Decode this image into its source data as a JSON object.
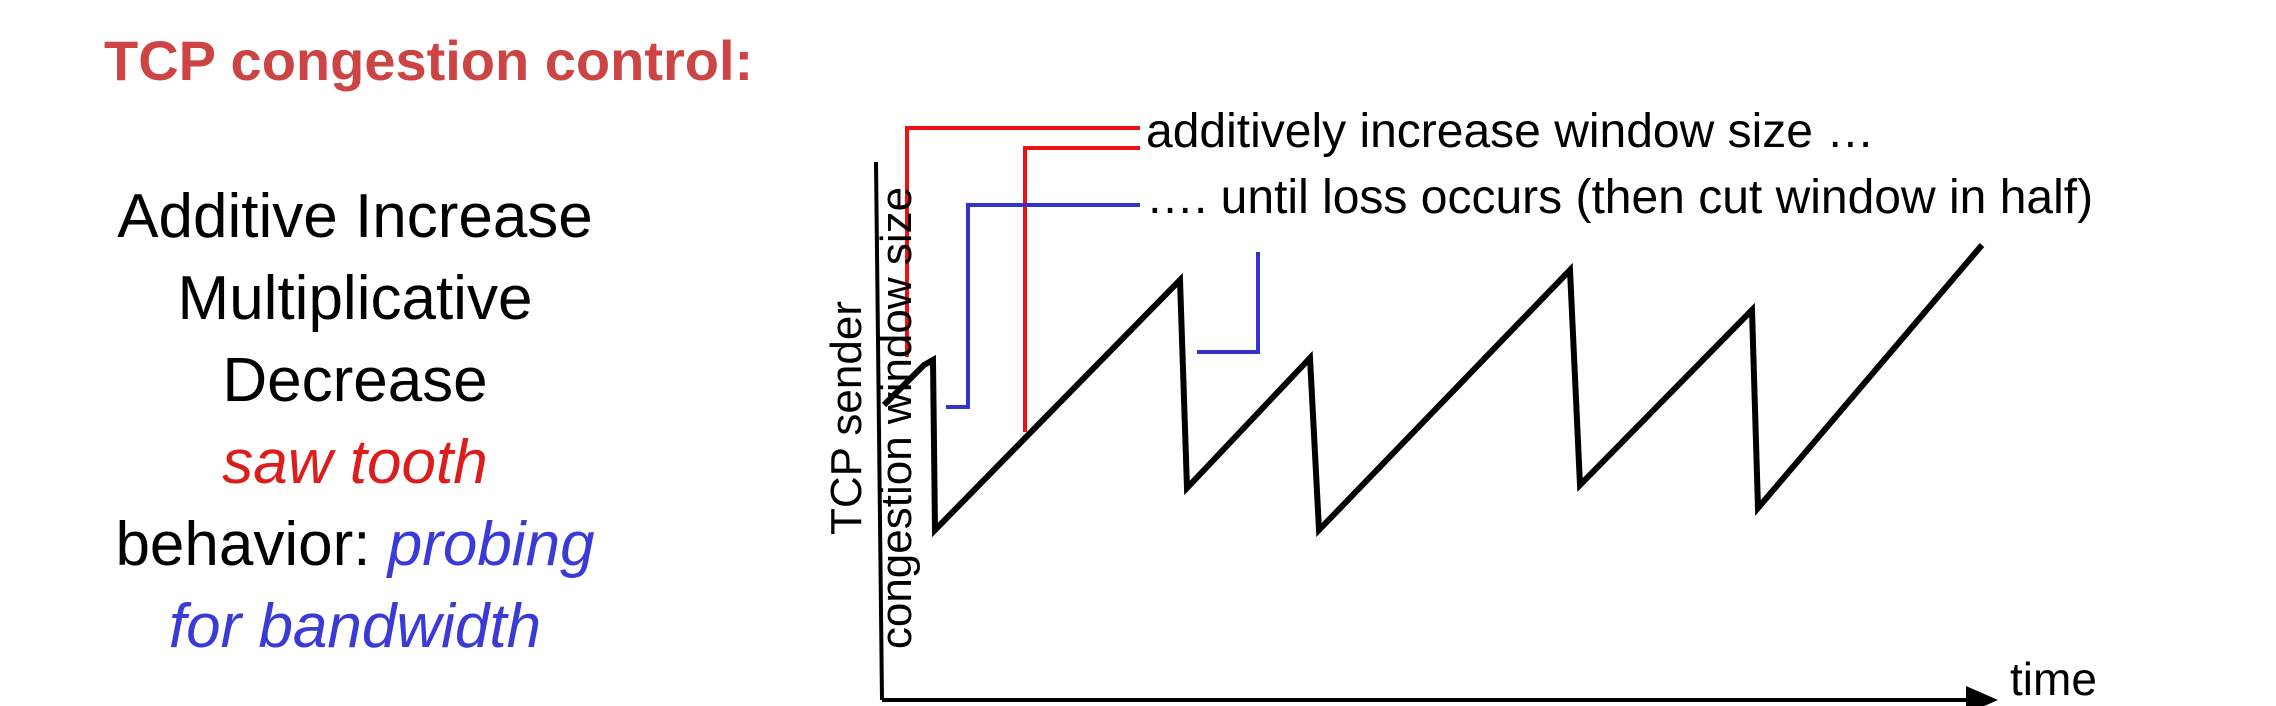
{
  "title": "TCP congestion control:",
  "left_text": {
    "line1": "Additive Increase",
    "line2": "Multiplicative",
    "line3": "Decrease",
    "line4": "saw tooth",
    "line5_prefix": "behavior: ",
    "line5_highlight": "probing",
    "line6": "for bandwidth"
  },
  "diagram": {
    "y_axis_label_line1": "TCP sender",
    "y_axis_label_line2": "congestion window size",
    "x_axis_label": "time",
    "annotation_increase": "additively increase window size …",
    "annotation_loss": "…. until loss occurs (then cut window in half)"
  },
  "colors": {
    "title": "#cc4444",
    "red": "#ee1111",
    "blue": "#3434cc",
    "line": "#000000"
  }
}
